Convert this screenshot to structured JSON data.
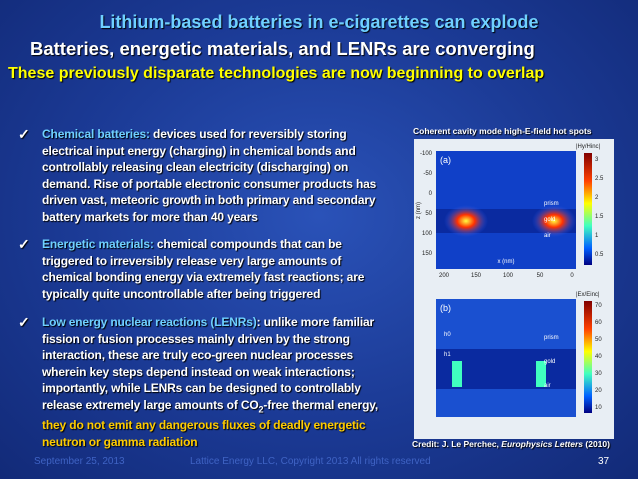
{
  "header": {
    "title": "Lithium-based batteries in e-cigarettes can explode",
    "subtitle": "Batteries, energetic materials, and LENRs are converging",
    "tagline": "These previously disparate technologies are now beginning to overlap"
  },
  "bullets": [
    {
      "label": "Chemical batteries:",
      "text": " devices used for reversibly storing electrical input energy (charging) in chemical bonds and controllably releasing clean electricity (discharging) on demand. Rise of portable electronic consumer products has driven vast, meteoric growth in both primary and secondary battery markets for more than 40 years"
    },
    {
      "label": "Energetic materials:",
      "text": " chemical compounds that can be triggered to irreversibly release very large amounts of chemical bonding energy via extremely fast reactions; are typically quite uncontrollable after being triggered"
    },
    {
      "label": "Low energy nuclear reactions (LENRs)",
      "text": ": unlike more familiar fission or fusion processes mainly driven by the strong interaction, these are truly eco-green nuclear processes wherein key steps depend instead on weak interactions; importantly, while LENRs can be designed to controllably release extremely large amounts of CO",
      "subscript": "2",
      "text_after": "-free thermal energy, ",
      "highlight": "they do not emit any dangerous fluxes of deadly energetic neutron or gamma radiation"
    }
  ],
  "figure": {
    "caption": "Coherent cavity mode high-E-field hot spots",
    "panel_a": {
      "label": "(a)",
      "scale_title": "|Hy/Hinc|",
      "z_ticks": [
        "-100",
        "-50",
        "0",
        "50",
        "100",
        "150"
      ],
      "x_ticks": [
        "200",
        "150",
        "100",
        "50",
        "0"
      ],
      "scale_ticks": [
        "3",
        "2.5",
        "2",
        "1.5",
        "1",
        "0.5"
      ],
      "z_axis": "z (nm)",
      "x_axis": "x (nm)",
      "materials": [
        "prism",
        "gold",
        "air"
      ]
    },
    "panel_b": {
      "label": "(b)",
      "scale_title": "|Ex/Einc|",
      "scale_ticks": [
        "70",
        "60",
        "50",
        "40",
        "30",
        "20",
        "10"
      ],
      "heights": [
        "h0",
        "h1"
      ],
      "materials": [
        "prism",
        "gold",
        "air"
      ]
    },
    "credit_prefix": "Credit: J. Le Perchec, ",
    "credit_journal": "Europhysics Letters",
    "credit_year": " (2010)"
  },
  "footer": {
    "date": "September 25, 2013",
    "copyright": "Lattice Energy LLC, Copyright 2013  All rights reserved",
    "page": "37"
  }
}
